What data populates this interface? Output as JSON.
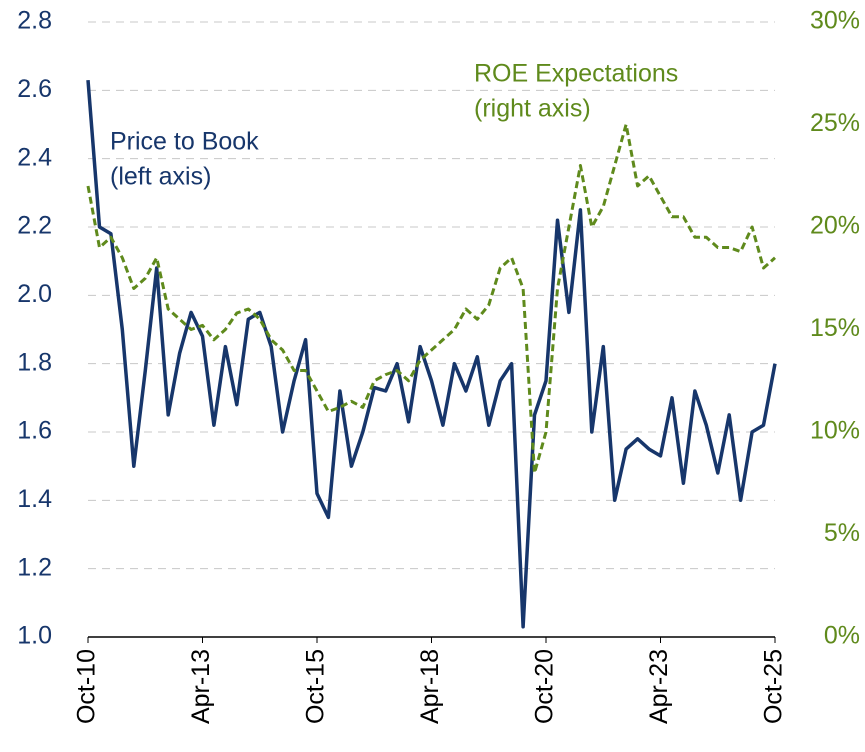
{
  "chart_data": {
    "type": "line",
    "categories": [
      "Oct-10",
      null,
      null,
      null,
      null,
      null,
      null,
      null,
      null,
      null,
      "Apr-13",
      null,
      null,
      null,
      null,
      null,
      null,
      null,
      null,
      null,
      "Oct-15",
      null,
      null,
      null,
      null,
      null,
      null,
      null,
      null,
      null,
      "Apr-18",
      null,
      null,
      null,
      null,
      null,
      null,
      null,
      null,
      null,
      "Oct-20",
      null,
      null,
      null,
      null,
      null,
      null,
      null,
      null,
      null,
      "Apr-23",
      null,
      null,
      null,
      null,
      null,
      null,
      null,
      null,
      null,
      "Oct-25"
    ],
    "series": [
      {
        "name": "Price to Book",
        "color": "#17366b",
        "axis": "y",
        "values": [
          2.63,
          2.2,
          2.18,
          1.9,
          1.5,
          1.78,
          2.08,
          1.65,
          1.83,
          1.95,
          1.88,
          1.62,
          1.85,
          1.68,
          1.93,
          1.95,
          1.85,
          1.6,
          1.75,
          1.87,
          1.42,
          1.35,
          1.72,
          1.5,
          1.6,
          1.73,
          1.72,
          1.8,
          1.63,
          1.85,
          1.75,
          1.62,
          1.8,
          1.72,
          1.82,
          1.62,
          1.75,
          1.8,
          1.03,
          1.65,
          1.75,
          2.22,
          1.95,
          2.25,
          1.6,
          1.85,
          1.4,
          1.55,
          1.58,
          1.55,
          1.53,
          1.7,
          1.45,
          1.72,
          1.62,
          1.48,
          1.65,
          1.4,
          1.6,
          1.62,
          1.8
        ]
      },
      {
        "name": "ROE Expectations",
        "color": "#5f8a1c",
        "axis": "y2",
        "dashed": true,
        "values": [
          22,
          19,
          19.5,
          18.5,
          17,
          17.5,
          18.5,
          16,
          15.5,
          15,
          15.2,
          14.5,
          15,
          15.8,
          16,
          15.5,
          14.5,
          14,
          13,
          13,
          12,
          11,
          11.2,
          11.5,
          11.2,
          12.5,
          12.8,
          13,
          12.5,
          13.5,
          14,
          14.5,
          15,
          16,
          15.5,
          16.2,
          18,
          18.5,
          17,
          8,
          10,
          17,
          20,
          23,
          20,
          21,
          23,
          25,
          22,
          22.5,
          21.5,
          20.5,
          20.5,
          19.5,
          19.5,
          19,
          19,
          18.8,
          20,
          18,
          18.5
        ]
      }
    ],
    "annotations": [
      {
        "lines": [
          "Price to Book",
          "(left axis)"
        ],
        "series": 0
      },
      {
        "lines": [
          "ROE Expectations",
          "(right axis)"
        ],
        "series": 1
      }
    ],
    "ylim": [
      1.0,
      2.8
    ],
    "yticks": [
      {
        "value": 1.0,
        "label": "1.0"
      },
      1.2,
      1.4,
      1.6,
      1.8,
      {
        "value": 2.0,
        "label": "2.0"
      },
      2.2,
      2.4,
      2.6,
      2.8
    ],
    "y2lim": [
      0,
      30
    ],
    "y2ticks": [
      {
        "value": 0,
        "label": "0%"
      },
      {
        "value": 5,
        "label": "5%"
      },
      {
        "value": 10,
        "label": "10%"
      },
      {
        "value": 15,
        "label": "15%"
      },
      {
        "value": 20,
        "label": "20%"
      },
      {
        "value": 25,
        "label": "25%"
      },
      {
        "value": 30,
        "label": "30%"
      }
    ],
    "grid": true
  }
}
